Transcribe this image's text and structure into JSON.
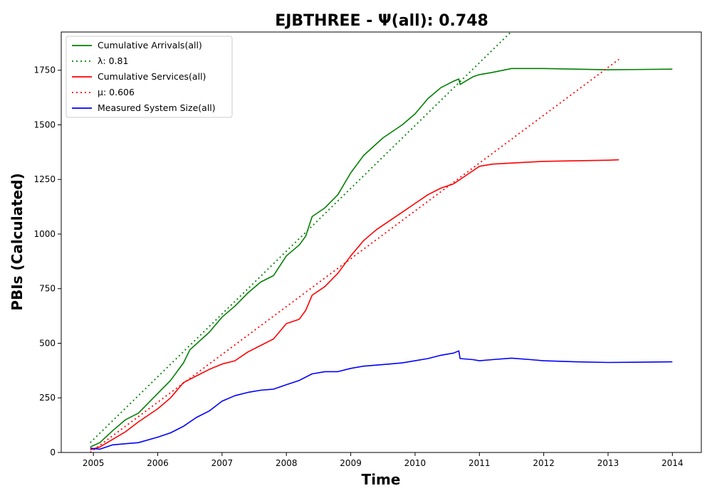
{
  "chart_data": {
    "type": "line",
    "title": "EJBTHREE -  Ψ(all): 0.748",
    "xlabel": "Time",
    "ylabel": "PBIs (Calculated)",
    "xlim": [
      2004.5,
      2014.45
    ],
    "ylim": [
      0,
      1925
    ],
    "x_ticks": [
      2005,
      2006,
      2007,
      2008,
      2009,
      2010,
      2011,
      2012,
      2013,
      2014
    ],
    "y_ticks": [
      0,
      250,
      500,
      750,
      1000,
      1250,
      1500,
      1750
    ],
    "grid": false,
    "legend_position": "top-left",
    "series": [
      {
        "name": "Cumulative Arrivals(all)",
        "color": "#008000",
        "style": "solid",
        "points": [
          [
            2004.95,
            25
          ],
          [
            2005.1,
            45
          ],
          [
            2005.3,
            100
          ],
          [
            2005.5,
            150
          ],
          [
            2005.7,
            180
          ],
          [
            2006.0,
            270
          ],
          [
            2006.2,
            330
          ],
          [
            2006.4,
            410
          ],
          [
            2006.5,
            470
          ],
          [
            2006.8,
            550
          ],
          [
            2007.0,
            620
          ],
          [
            2007.2,
            670
          ],
          [
            2007.4,
            730
          ],
          [
            2007.6,
            780
          ],
          [
            2007.8,
            810
          ],
          [
            2008.0,
            900
          ],
          [
            2008.2,
            950
          ],
          [
            2008.3,
            990
          ],
          [
            2008.4,
            1080
          ],
          [
            2008.6,
            1120
          ],
          [
            2008.8,
            1180
          ],
          [
            2009.0,
            1280
          ],
          [
            2009.2,
            1360
          ],
          [
            2009.5,
            1440
          ],
          [
            2009.8,
            1500
          ],
          [
            2010.0,
            1550
          ],
          [
            2010.2,
            1620
          ],
          [
            2010.4,
            1670
          ],
          [
            2010.6,
            1700
          ],
          [
            2010.68,
            1710
          ],
          [
            2010.7,
            1685
          ],
          [
            2010.9,
            1720
          ],
          [
            2011.0,
            1730
          ],
          [
            2011.2,
            1740
          ],
          [
            2011.5,
            1758
          ],
          [
            2012.0,
            1758
          ],
          [
            2012.5,
            1755
          ],
          [
            2013.0,
            1752
          ],
          [
            2014.0,
            1755
          ]
        ]
      },
      {
        "name": "λ: 0.81",
        "color": "#008000",
        "style": "dotted",
        "points": [
          [
            2004.95,
            45
          ],
          [
            2011.5,
            1928
          ]
        ]
      },
      {
        "name": "Cumulative Services(all)",
        "color": "#ff0000",
        "style": "solid",
        "points": [
          [
            2004.95,
            12
          ],
          [
            2005.1,
            25
          ],
          [
            2005.3,
            60
          ],
          [
            2005.5,
            95
          ],
          [
            2005.7,
            140
          ],
          [
            2006.0,
            200
          ],
          [
            2006.2,
            250
          ],
          [
            2006.4,
            320
          ],
          [
            2006.6,
            350
          ],
          [
            2006.8,
            380
          ],
          [
            2007.0,
            405
          ],
          [
            2007.2,
            420
          ],
          [
            2007.4,
            460
          ],
          [
            2007.6,
            490
          ],
          [
            2007.8,
            520
          ],
          [
            2008.0,
            590
          ],
          [
            2008.2,
            610
          ],
          [
            2008.3,
            650
          ],
          [
            2008.4,
            720
          ],
          [
            2008.6,
            760
          ],
          [
            2008.8,
            820
          ],
          [
            2009.0,
            900
          ],
          [
            2009.2,
            970
          ],
          [
            2009.4,
            1020
          ],
          [
            2009.6,
            1060
          ],
          [
            2009.8,
            1100
          ],
          [
            2010.0,
            1140
          ],
          [
            2010.2,
            1180
          ],
          [
            2010.4,
            1210
          ],
          [
            2010.6,
            1230
          ],
          [
            2010.8,
            1270
          ],
          [
            2011.0,
            1310
          ],
          [
            2011.2,
            1320
          ],
          [
            2011.5,
            1325
          ],
          [
            2012.0,
            1333
          ],
          [
            2013.0,
            1338
          ],
          [
            2013.17,
            1340
          ]
        ]
      },
      {
        "name": "μ: 0.606",
        "color": "#ff0000",
        "style": "dotted",
        "points": [
          [
            2004.95,
            0
          ],
          [
            2013.17,
            1800
          ]
        ]
      },
      {
        "name": "Measured System Size(all)",
        "color": "#0000ff",
        "style": "solid",
        "points": [
          [
            2004.95,
            20
          ],
          [
            2005.1,
            15
          ],
          [
            2005.3,
            35
          ],
          [
            2005.5,
            40
          ],
          [
            2005.7,
            45
          ],
          [
            2006.0,
            70
          ],
          [
            2006.2,
            90
          ],
          [
            2006.4,
            120
          ],
          [
            2006.6,
            160
          ],
          [
            2006.8,
            190
          ],
          [
            2007.0,
            235
          ],
          [
            2007.2,
            260
          ],
          [
            2007.4,
            275
          ],
          [
            2007.6,
            285
          ],
          [
            2007.8,
            290
          ],
          [
            2008.0,
            310
          ],
          [
            2008.2,
            330
          ],
          [
            2008.4,
            360
          ],
          [
            2008.6,
            370
          ],
          [
            2008.8,
            370
          ],
          [
            2009.0,
            385
          ],
          [
            2009.2,
            395
          ],
          [
            2009.4,
            400
          ],
          [
            2009.6,
            405
          ],
          [
            2009.8,
            410
          ],
          [
            2010.0,
            420
          ],
          [
            2010.2,
            430
          ],
          [
            2010.4,
            445
          ],
          [
            2010.6,
            455
          ],
          [
            2010.68,
            465
          ],
          [
            2010.7,
            430
          ],
          [
            2010.9,
            425
          ],
          [
            2011.0,
            420
          ],
          [
            2011.2,
            425
          ],
          [
            2011.5,
            432
          ],
          [
            2011.8,
            425
          ],
          [
            2012.0,
            420
          ],
          [
            2012.5,
            415
          ],
          [
            2013.0,
            412
          ],
          [
            2014.0,
            415
          ]
        ]
      }
    ]
  }
}
